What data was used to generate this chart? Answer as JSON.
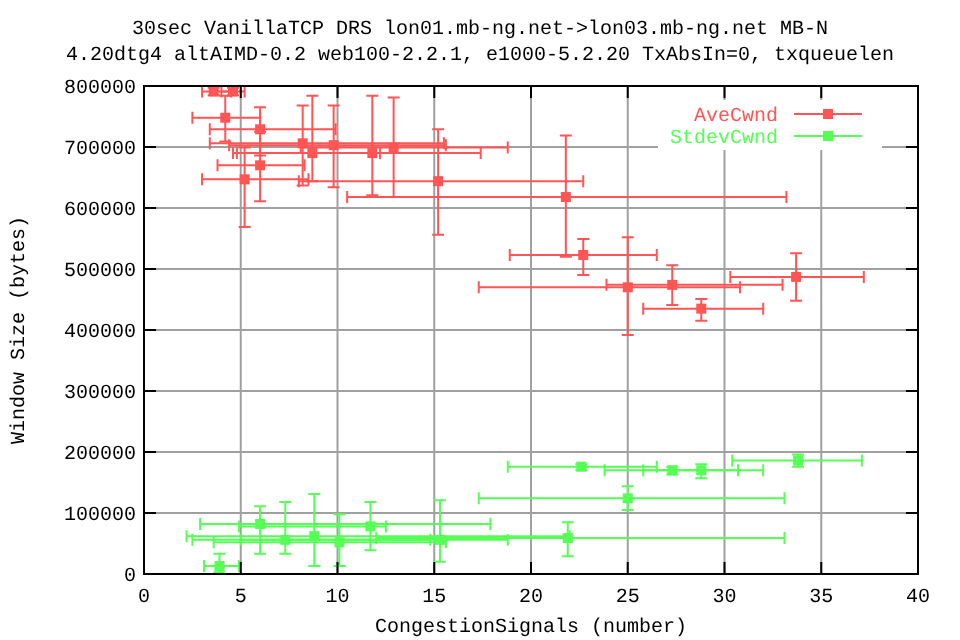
{
  "chart_data": {
    "type": "scatter",
    "title": "30sec VanillaTCP DRS lon01.mb-ng.net->lon03.mb-ng.net MB-N",
    "subtitle": "4.20dtg4 altAIMD-0.2 web100-2.2.1, e1000-5.2.20 TxAbsIn=0, txqueuelen",
    "xlabel": "CongestionSignals (number)",
    "ylabel": "Window Size (bytes)",
    "xlim": [
      0,
      40
    ],
    "xticks": [
      0,
      5,
      10,
      15,
      20,
      25,
      30,
      35,
      40
    ],
    "ylim": [
      0,
      800000
    ],
    "yticks": [
      0,
      100000,
      200000,
      300000,
      400000,
      500000,
      600000,
      700000,
      800000
    ],
    "grid": true,
    "legend": "top right",
    "marker": "square",
    "series": [
      {
        "name": "AveCwnd",
        "color": "#ff5555",
        "x": [
          33.7,
          28.8,
          27.3,
          25.0,
          22.7,
          21.8,
          15.2,
          4.2,
          6.0,
          5.2,
          6.0,
          8.2,
          8.7,
          11.8,
          12.9,
          9.8,
          3.6,
          4.6
        ],
        "values": [
          487000,
          435000,
          474000,
          470000,
          523000,
          618000,
          644000,
          748000,
          729000,
          647000,
          670000,
          706000,
          690000,
          690000,
          699000,
          703000,
          791000,
          791000
        ],
        "xerrors": [
          [
            30.3,
            37.2
          ],
          [
            25.8,
            32.0
          ],
          [
            23.9,
            33.0
          ],
          [
            17.3,
            30.8
          ],
          [
            18.9,
            26.5
          ],
          [
            10.5,
            33.2
          ],
          [
            8.0,
            22.7
          ],
          [
            2.5,
            6.0
          ],
          [
            3.4,
            9.9
          ],
          [
            3.0,
            8.5
          ],
          [
            3.8,
            8.3
          ],
          [
            3.4,
            15.5
          ],
          [
            4.8,
            12.2
          ],
          [
            4.6,
            17.4
          ],
          [
            8.1,
            18.8
          ],
          [
            4.4,
            15.6
          ],
          [
            3.0,
            4.5
          ],
          [
            4.0,
            5.2
          ]
        ],
        "errors": [
          [
            448000,
            526000
          ],
          [
            415000,
            451000
          ],
          [
            441000,
            506000
          ],
          [
            392000,
            552000
          ],
          [
            490000,
            549000
          ],
          [
            520000,
            719000
          ],
          [
            556000,
            729000
          ],
          [
            709000,
            784000
          ],
          [
            686000,
            765000
          ],
          [
            569000,
            699000
          ],
          [
            611000,
            725000
          ],
          [
            637000,
            768000
          ],
          [
            644000,
            784000
          ],
          [
            621000,
            784000
          ],
          [
            618000,
            781000
          ],
          [
            634000,
            768000
          ],
          [
            785000,
            797000
          ],
          [
            785000,
            797000
          ]
        ]
      },
      {
        "name": "StdevCwnd",
        "color": "#55ff55",
        "x": [
          6.0,
          11.7,
          8.8,
          7.3,
          10.1,
          3.9,
          15.3,
          33.8,
          28.8,
          27.3,
          22.6,
          25.0,
          21.9
        ],
        "values": [
          82000,
          78000,
          62000,
          56000,
          52000,
          13000,
          56000,
          186000,
          170000,
          170000,
          176000,
          124000,
          59000
        ],
        "xerrors": [
          [
            2.9,
            17.9
          ],
          [
            4.9,
            12.5
          ],
          [
            2.2,
            22.0
          ],
          [
            2.5,
            14.8
          ],
          [
            3.6,
            15.6
          ],
          [
            3.1,
            4.9
          ],
          [
            5.0,
            18.8
          ],
          [
            30.4,
            37.1
          ],
          [
            25.8,
            30.7
          ],
          [
            23.8,
            32.0
          ],
          [
            18.8,
            26.5
          ],
          [
            17.3,
            33.1
          ],
          [
            12.0,
            33.1
          ]
        ],
        "errors": [
          [
            33000,
            111000
          ],
          [
            39000,
            118000
          ],
          [
            13000,
            131000
          ],
          [
            33000,
            118000
          ],
          [
            13000,
            98000
          ],
          [
            3000,
            33000
          ],
          [
            20000,
            121000
          ],
          [
            176000,
            196000
          ],
          [
            157000,
            180000
          ],
          [
            163000,
            176000
          ],
          [
            170000,
            180000
          ],
          [
            105000,
            144000
          ],
          [
            29000,
            85000
          ]
        ]
      }
    ]
  }
}
